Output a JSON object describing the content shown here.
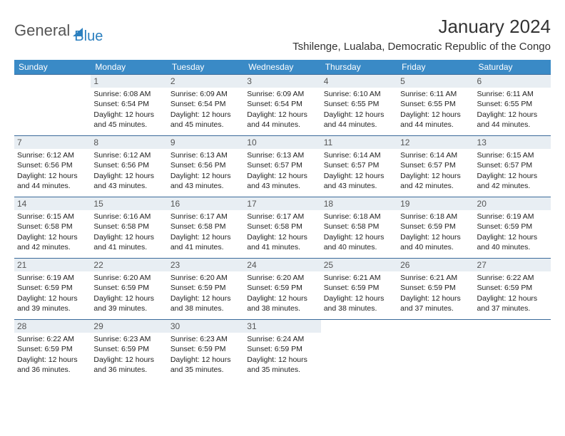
{
  "logo": {
    "text1": "General",
    "text2": "Blue"
  },
  "title": "January 2024",
  "subtitle": "Tshilenge, Lualaba, Democratic Republic of the Congo",
  "weekdays": [
    "Sunday",
    "Monday",
    "Tuesday",
    "Wednesday",
    "Thursday",
    "Friday",
    "Saturday"
  ],
  "colors": {
    "header_bg": "#3a8ac6",
    "header_text": "#ffffff",
    "daynum_bg": "#e8eef3",
    "border": "#3a6a9a",
    "logo_blue": "#2b7fbf"
  },
  "fonts": {
    "title_size": 26,
    "subtitle_size": 15,
    "weekday_size": 12,
    "daynum_size": 12,
    "cell_size": 10.5
  },
  "weeks": [
    [
      {
        "n": "",
        "sr": "",
        "ss": "",
        "dl": ""
      },
      {
        "n": "1",
        "sr": "Sunrise: 6:08 AM",
        "ss": "Sunset: 6:54 PM",
        "dl": "Daylight: 12 hours and 45 minutes."
      },
      {
        "n": "2",
        "sr": "Sunrise: 6:09 AM",
        "ss": "Sunset: 6:54 PM",
        "dl": "Daylight: 12 hours and 45 minutes."
      },
      {
        "n": "3",
        "sr": "Sunrise: 6:09 AM",
        "ss": "Sunset: 6:54 PM",
        "dl": "Daylight: 12 hours and 44 minutes."
      },
      {
        "n": "4",
        "sr": "Sunrise: 6:10 AM",
        "ss": "Sunset: 6:55 PM",
        "dl": "Daylight: 12 hours and 44 minutes."
      },
      {
        "n": "5",
        "sr": "Sunrise: 6:11 AM",
        "ss": "Sunset: 6:55 PM",
        "dl": "Daylight: 12 hours and 44 minutes."
      },
      {
        "n": "6",
        "sr": "Sunrise: 6:11 AM",
        "ss": "Sunset: 6:55 PM",
        "dl": "Daylight: 12 hours and 44 minutes."
      }
    ],
    [
      {
        "n": "7",
        "sr": "Sunrise: 6:12 AM",
        "ss": "Sunset: 6:56 PM",
        "dl": "Daylight: 12 hours and 44 minutes."
      },
      {
        "n": "8",
        "sr": "Sunrise: 6:12 AM",
        "ss": "Sunset: 6:56 PM",
        "dl": "Daylight: 12 hours and 43 minutes."
      },
      {
        "n": "9",
        "sr": "Sunrise: 6:13 AM",
        "ss": "Sunset: 6:56 PM",
        "dl": "Daylight: 12 hours and 43 minutes."
      },
      {
        "n": "10",
        "sr": "Sunrise: 6:13 AM",
        "ss": "Sunset: 6:57 PM",
        "dl": "Daylight: 12 hours and 43 minutes."
      },
      {
        "n": "11",
        "sr": "Sunrise: 6:14 AM",
        "ss": "Sunset: 6:57 PM",
        "dl": "Daylight: 12 hours and 43 minutes."
      },
      {
        "n": "12",
        "sr": "Sunrise: 6:14 AM",
        "ss": "Sunset: 6:57 PM",
        "dl": "Daylight: 12 hours and 42 minutes."
      },
      {
        "n": "13",
        "sr": "Sunrise: 6:15 AM",
        "ss": "Sunset: 6:57 PM",
        "dl": "Daylight: 12 hours and 42 minutes."
      }
    ],
    [
      {
        "n": "14",
        "sr": "Sunrise: 6:15 AM",
        "ss": "Sunset: 6:58 PM",
        "dl": "Daylight: 12 hours and 42 minutes."
      },
      {
        "n": "15",
        "sr": "Sunrise: 6:16 AM",
        "ss": "Sunset: 6:58 PM",
        "dl": "Daylight: 12 hours and 41 minutes."
      },
      {
        "n": "16",
        "sr": "Sunrise: 6:17 AM",
        "ss": "Sunset: 6:58 PM",
        "dl": "Daylight: 12 hours and 41 minutes."
      },
      {
        "n": "17",
        "sr": "Sunrise: 6:17 AM",
        "ss": "Sunset: 6:58 PM",
        "dl": "Daylight: 12 hours and 41 minutes."
      },
      {
        "n": "18",
        "sr": "Sunrise: 6:18 AM",
        "ss": "Sunset: 6:58 PM",
        "dl": "Daylight: 12 hours and 40 minutes."
      },
      {
        "n": "19",
        "sr": "Sunrise: 6:18 AM",
        "ss": "Sunset: 6:59 PM",
        "dl": "Daylight: 12 hours and 40 minutes."
      },
      {
        "n": "20",
        "sr": "Sunrise: 6:19 AM",
        "ss": "Sunset: 6:59 PM",
        "dl": "Daylight: 12 hours and 40 minutes."
      }
    ],
    [
      {
        "n": "21",
        "sr": "Sunrise: 6:19 AM",
        "ss": "Sunset: 6:59 PM",
        "dl": "Daylight: 12 hours and 39 minutes."
      },
      {
        "n": "22",
        "sr": "Sunrise: 6:20 AM",
        "ss": "Sunset: 6:59 PM",
        "dl": "Daylight: 12 hours and 39 minutes."
      },
      {
        "n": "23",
        "sr": "Sunrise: 6:20 AM",
        "ss": "Sunset: 6:59 PM",
        "dl": "Daylight: 12 hours and 38 minutes."
      },
      {
        "n": "24",
        "sr": "Sunrise: 6:20 AM",
        "ss": "Sunset: 6:59 PM",
        "dl": "Daylight: 12 hours and 38 minutes."
      },
      {
        "n": "25",
        "sr": "Sunrise: 6:21 AM",
        "ss": "Sunset: 6:59 PM",
        "dl": "Daylight: 12 hours and 38 minutes."
      },
      {
        "n": "26",
        "sr": "Sunrise: 6:21 AM",
        "ss": "Sunset: 6:59 PM",
        "dl": "Daylight: 12 hours and 37 minutes."
      },
      {
        "n": "27",
        "sr": "Sunrise: 6:22 AM",
        "ss": "Sunset: 6:59 PM",
        "dl": "Daylight: 12 hours and 37 minutes."
      }
    ],
    [
      {
        "n": "28",
        "sr": "Sunrise: 6:22 AM",
        "ss": "Sunset: 6:59 PM",
        "dl": "Daylight: 12 hours and 36 minutes."
      },
      {
        "n": "29",
        "sr": "Sunrise: 6:23 AM",
        "ss": "Sunset: 6:59 PM",
        "dl": "Daylight: 12 hours and 36 minutes."
      },
      {
        "n": "30",
        "sr": "Sunrise: 6:23 AM",
        "ss": "Sunset: 6:59 PM",
        "dl": "Daylight: 12 hours and 35 minutes."
      },
      {
        "n": "31",
        "sr": "Sunrise: 6:24 AM",
        "ss": "Sunset: 6:59 PM",
        "dl": "Daylight: 12 hours and 35 minutes."
      },
      {
        "n": "",
        "sr": "",
        "ss": "",
        "dl": ""
      },
      {
        "n": "",
        "sr": "",
        "ss": "",
        "dl": ""
      },
      {
        "n": "",
        "sr": "",
        "ss": "",
        "dl": ""
      }
    ]
  ]
}
